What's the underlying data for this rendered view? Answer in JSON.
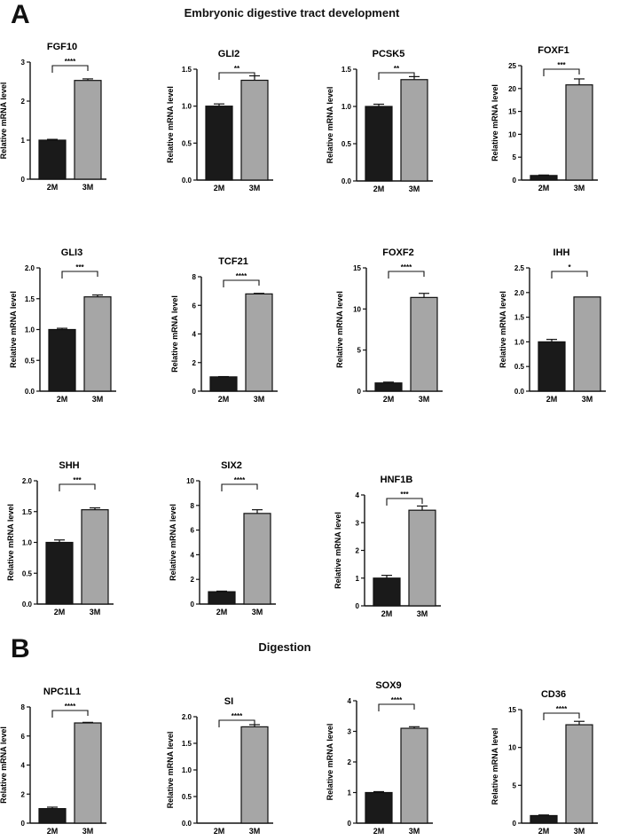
{
  "figure": {
    "panels": [
      {
        "letter": "A",
        "title": "Embryonic digestive tract development"
      },
      {
        "letter": "B",
        "title": "Digestion"
      }
    ],
    "bar_colors": {
      "2M": "#1a1a1a",
      "3M": "#a6a6a6"
    }
  },
  "chart_data": [
    {
      "type": "bar",
      "panel": "A",
      "title": "FGF10",
      "categories": [
        "2M",
        "3M"
      ],
      "values": [
        1.0,
        2.53
      ],
      "errors": [
        0.02,
        0.04
      ],
      "ylabel": "Relative mRNA level",
      "ylim": [
        0,
        3
      ],
      "yticks": [
        0,
        1,
        2,
        3
      ],
      "yticklabels": [
        "0",
        "1",
        "2",
        "3"
      ],
      "significance": "****"
    },
    {
      "type": "bar",
      "panel": "A",
      "title": "GLI2",
      "categories": [
        "2M",
        "3M"
      ],
      "values": [
        1.0,
        1.35
      ],
      "errors": [
        0.03,
        0.06
      ],
      "ylabel": "Relative mRNA level",
      "ylim": [
        0,
        1.5
      ],
      "yticks": [
        0,
        0.5,
        1.0,
        1.5
      ],
      "yticklabels": [
        "0.0",
        "0.5",
        "1.0",
        "1.5"
      ],
      "significance": "**"
    },
    {
      "type": "bar",
      "panel": "A",
      "title": "PCSK5",
      "categories": [
        "2M",
        "3M"
      ],
      "values": [
        1.0,
        1.36
      ],
      "errors": [
        0.03,
        0.04
      ],
      "ylabel": "Relative mRNA level",
      "ylim": [
        0,
        1.5
      ],
      "yticks": [
        0,
        0.5,
        1.0,
        1.5
      ],
      "yticklabels": [
        "0.0",
        "0.5",
        "1.0",
        "1.5"
      ],
      "significance": "**"
    },
    {
      "type": "bar",
      "panel": "A",
      "title": "FOXF1",
      "categories": [
        "2M",
        "3M"
      ],
      "values": [
        1.0,
        20.8
      ],
      "errors": [
        0.1,
        1.3
      ],
      "ylabel": "Relative mRNA level",
      "ylim": [
        0,
        25
      ],
      "yticks": [
        0,
        5,
        10,
        15,
        20,
        25
      ],
      "yticklabels": [
        "0",
        "5",
        "10",
        "15",
        "20",
        "25"
      ],
      "significance": "***"
    },
    {
      "type": "bar",
      "panel": "A",
      "title": "GLI3",
      "categories": [
        "2M",
        "3M"
      ],
      "values": [
        1.0,
        1.53
      ],
      "errors": [
        0.02,
        0.03
      ],
      "ylabel": "Relative mRNA level",
      "ylim": [
        0,
        2.0
      ],
      "yticks": [
        0,
        0.5,
        1.0,
        1.5,
        2.0
      ],
      "yticklabels": [
        "0.0",
        "0.5",
        "1.0",
        "1.5",
        "2.0"
      ],
      "significance": "***"
    },
    {
      "type": "bar",
      "panel": "A",
      "title": "TCF21",
      "categories": [
        "2M",
        "3M"
      ],
      "values": [
        1.0,
        6.8
      ],
      "errors": [
        0.02,
        0.04
      ],
      "ylabel": "Relative mRNA level",
      "ylim": [
        0,
        8
      ],
      "yticks": [
        0,
        2,
        4,
        6,
        8
      ],
      "yticklabels": [
        "0",
        "2",
        "4",
        "6",
        "8"
      ],
      "significance": "****"
    },
    {
      "type": "bar",
      "panel": "A",
      "title": "FOXF2",
      "categories": [
        "2M",
        "3M"
      ],
      "values": [
        1.0,
        11.4
      ],
      "errors": [
        0.1,
        0.5
      ],
      "ylabel": "Relative mRNA level",
      "ylim": [
        0,
        15
      ],
      "yticks": [
        0,
        5,
        10,
        15
      ],
      "yticklabels": [
        "0",
        "5",
        "10",
        "15"
      ],
      "significance": "****"
    },
    {
      "type": "bar",
      "panel": "A",
      "title": "IHH",
      "categories": [
        "2M",
        "3M"
      ],
      "values": [
        1.0,
        1.91
      ],
      "errors": [
        0.05,
        0.0
      ],
      "ylabel": "Relative mRNA level",
      "ylim": [
        0,
        2.5
      ],
      "yticks": [
        0,
        0.5,
        1.0,
        1.5,
        2.0,
        2.5
      ],
      "yticklabels": [
        "0.0",
        "0.5",
        "1.0",
        "1.5",
        "2.0",
        "2.5"
      ],
      "significance": "*"
    },
    {
      "type": "bar",
      "panel": "A",
      "title": "SHH",
      "categories": [
        "2M",
        "3M"
      ],
      "values": [
        1.0,
        1.53
      ],
      "errors": [
        0.04,
        0.03
      ],
      "ylabel": "Relative mRNA level",
      "ylim": [
        0,
        2.0
      ],
      "yticks": [
        0,
        0.5,
        1.0,
        1.5,
        2.0
      ],
      "yticklabels": [
        "0.0",
        "0.5",
        "1.0",
        "1.5",
        "2.0"
      ],
      "significance": "***"
    },
    {
      "type": "bar",
      "panel": "A",
      "title": "SIX2",
      "categories": [
        "2M",
        "3M"
      ],
      "values": [
        1.0,
        7.35
      ],
      "errors": [
        0.05,
        0.3
      ],
      "ylabel": "Relative mRNA level",
      "ylim": [
        0,
        10
      ],
      "yticks": [
        0,
        2,
        4,
        6,
        8,
        10
      ],
      "yticklabels": [
        "0",
        "2",
        "4",
        "6",
        "8",
        "10"
      ],
      "significance": "****"
    },
    {
      "type": "bar",
      "panel": "A",
      "title": "HNF1B",
      "categories": [
        "2M",
        "3M"
      ],
      "values": [
        1.0,
        3.45
      ],
      "errors": [
        0.1,
        0.15
      ],
      "ylabel": "Relative mRNA level",
      "ylim": [
        0,
        4
      ],
      "yticks": [
        0,
        1,
        2,
        3,
        4
      ],
      "yticklabels": [
        "0",
        "1",
        "2",
        "3",
        "4"
      ],
      "significance": "***"
    },
    {
      "type": "bar",
      "panel": "B",
      "title": "NPC1L1",
      "categories": [
        "2M",
        "3M"
      ],
      "values": [
        1.0,
        6.9
      ],
      "errors": [
        0.1,
        0.04
      ],
      "ylabel": "Relative mRNA level",
      "ylim": [
        0,
        8
      ],
      "yticks": [
        0,
        2,
        4,
        6,
        8
      ],
      "yticklabels": [
        "0",
        "2",
        "4",
        "6",
        "8"
      ],
      "significance": "****"
    },
    {
      "type": "bar",
      "panel": "B",
      "title": "SI",
      "categories": [
        "2M",
        "3M"
      ],
      "values": [
        0.0,
        1.81
      ],
      "errors": [
        0.0,
        0.04
      ],
      "ylabel": "Relative mRNA level",
      "ylim": [
        0,
        2.0
      ],
      "yticks": [
        0,
        0.5,
        1.0,
        1.5,
        2.0
      ],
      "yticklabels": [
        "0.0",
        "0.5",
        "1.0",
        "1.5",
        "2.0"
      ],
      "significance": "****"
    },
    {
      "type": "bar",
      "panel": "B",
      "title": "SOX9",
      "categories": [
        "2M",
        "3M"
      ],
      "values": [
        1.0,
        3.1
      ],
      "errors": [
        0.03,
        0.05
      ],
      "ylabel": "Relative mRNA level",
      "ylim": [
        0,
        4
      ],
      "yticks": [
        0,
        1,
        2,
        3,
        4
      ],
      "yticklabels": [
        "0",
        "1",
        "2",
        "3",
        "4"
      ],
      "significance": "****"
    },
    {
      "type": "bar",
      "panel": "B",
      "title": "CD36",
      "categories": [
        "2M",
        "3M"
      ],
      "values": [
        1.0,
        13.0
      ],
      "errors": [
        0.08,
        0.45
      ],
      "ylabel": "Relative mRNA level",
      "ylim": [
        0,
        15
      ],
      "yticks": [
        0,
        5,
        10,
        15
      ],
      "yticklabels": [
        "0",
        "5",
        "10",
        "15"
      ],
      "significance": "****"
    }
  ]
}
